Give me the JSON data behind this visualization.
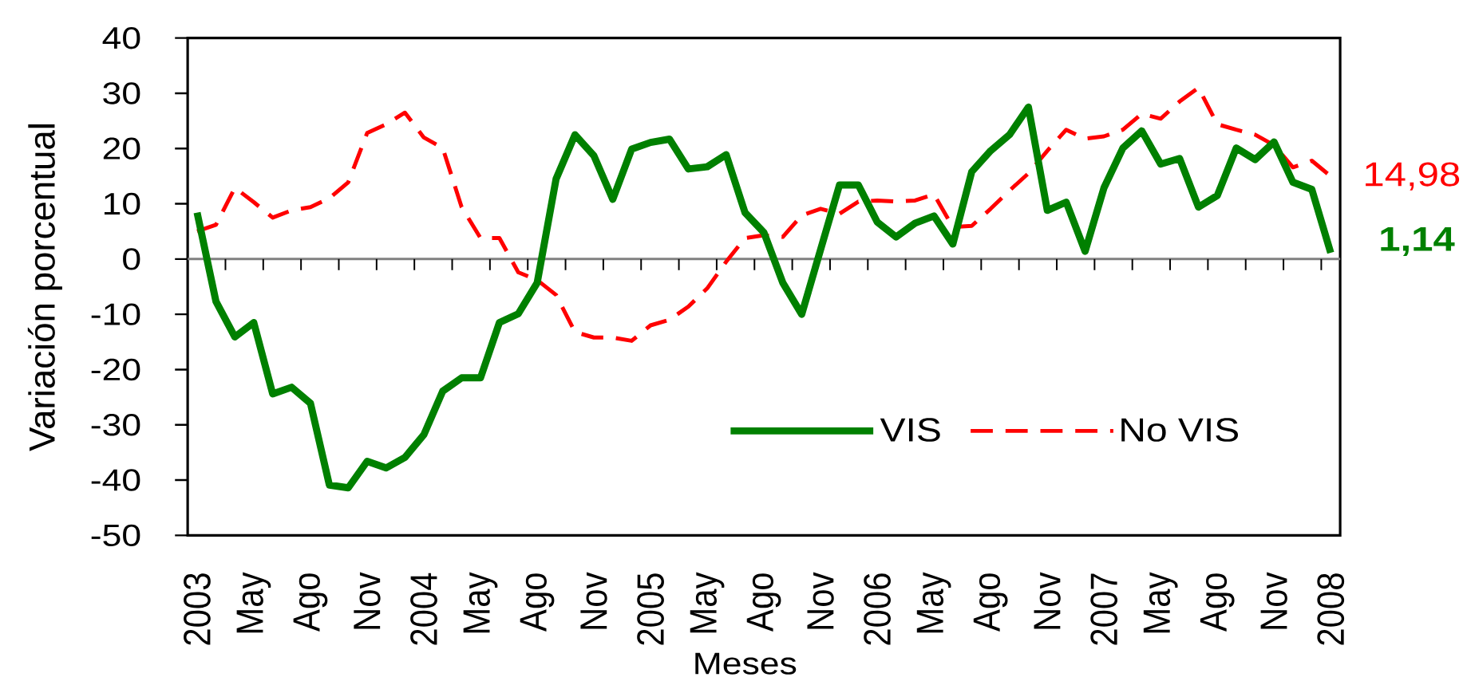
{
  "chart_data": {
    "type": "line",
    "xlabel": "Meses",
    "ylabel": "Variación porcentual",
    "categories": [
      "2003",
      null,
      null,
      "May",
      null,
      null,
      "Ago",
      null,
      null,
      "Nov",
      null,
      null,
      "2004",
      null,
      null,
      "May",
      null,
      null,
      "Ago",
      null,
      null,
      "Nov",
      null,
      null,
      "2005",
      null,
      null,
      "May",
      null,
      null,
      "Ago",
      null,
      null,
      "Nov",
      null,
      null,
      "2006",
      null,
      null,
      "May",
      null,
      null,
      "Ago",
      null,
      null,
      "Nov",
      null,
      null,
      "2007",
      null,
      null,
      "May",
      null,
      null,
      "Ago",
      null,
      null,
      "Nov",
      null,
      null,
      "2008"
    ],
    "series": [
      {
        "name": "VIS",
        "color": "#008000",
        "line_style": "solid",
        "values": [
          8.4,
          -7.7,
          -14.1,
          -11.5,
          -24.4,
          -23.2,
          -26.1,
          -40.9,
          -41.4,
          -36.6,
          -37.8,
          -35.9,
          -31.8,
          -23.9,
          -21.5,
          -21.5,
          -11.5,
          -9.9,
          -4.3,
          14.5,
          22.5,
          18.7,
          10.8,
          19.9,
          21.1,
          21.7,
          16.3,
          16.7,
          18.9,
          8.4,
          4.8,
          -4.3,
          -10.0,
          1.7,
          13.4,
          13.4,
          6.7,
          4.0,
          6.5,
          7.8,
          2.7,
          15.8,
          19.6,
          22.5,
          27.5,
          8.8,
          10.3,
          1.4,
          12.9,
          20.1,
          23.2,
          17.2,
          18.2,
          9.4,
          11.5,
          20.1,
          18.0,
          21.2,
          13.9,
          12.6,
          1.14
        ],
        "value_labels": [
          null,
          null,
          null,
          null,
          null,
          null,
          null,
          null,
          null,
          null,
          null,
          null,
          null,
          null,
          null,
          null,
          null,
          null,
          null,
          null,
          null,
          null,
          null,
          null,
          null,
          null,
          null,
          null,
          null,
          null,
          null,
          null,
          null,
          null,
          null,
          null,
          null,
          null,
          null,
          null,
          null,
          null,
          null,
          null,
          null,
          null,
          null,
          null,
          null,
          null,
          null,
          null,
          null,
          null,
          null,
          null,
          null,
          null,
          null,
          null,
          "1,14"
        ]
      },
      {
        "name": "No VIS",
        "color": "#ff0000",
        "line_style": "dashed",
        "values": [
          5.0,
          6.2,
          12.9,
          10.3,
          7.5,
          8.8,
          9.4,
          11.0,
          13.9,
          22.8,
          24.4,
          26.5,
          22.0,
          20.1,
          9.4,
          3.8,
          3.8,
          -2.4,
          -3.8,
          -6.5,
          -13.2,
          -14.2,
          -14.2,
          -14.8,
          -12.0,
          -11.0,
          -8.6,
          -5.3,
          -0.5,
          3.8,
          4.3,
          4.0,
          7.9,
          9.1,
          8.2,
          10.4,
          10.6,
          10.4,
          10.6,
          11.7,
          5.8,
          6.0,
          9.1,
          12.4,
          15.5,
          19.6,
          23.4,
          21.8,
          22.2,
          23.4,
          26.3,
          25.4,
          28.5,
          31.0,
          24.4,
          23.4,
          22.5,
          20.6,
          16.6,
          17.8,
          14.98
        ],
        "value_labels": [
          null,
          null,
          null,
          null,
          null,
          null,
          null,
          null,
          null,
          null,
          null,
          null,
          null,
          null,
          null,
          null,
          null,
          null,
          null,
          null,
          null,
          null,
          null,
          null,
          null,
          null,
          null,
          null,
          null,
          null,
          null,
          null,
          null,
          null,
          null,
          null,
          null,
          null,
          null,
          null,
          null,
          null,
          null,
          null,
          null,
          null,
          null,
          null,
          null,
          null,
          null,
          null,
          null,
          null,
          null,
          null,
          null,
          null,
          null,
          null,
          "14,98"
        ]
      }
    ],
    "ylim": [
      -50,
      40
    ],
    "yticks": [
      -50,
      -40,
      -30,
      -20,
      -10,
      0,
      10,
      20,
      30,
      40
    ],
    "legend": "bottom right"
  }
}
